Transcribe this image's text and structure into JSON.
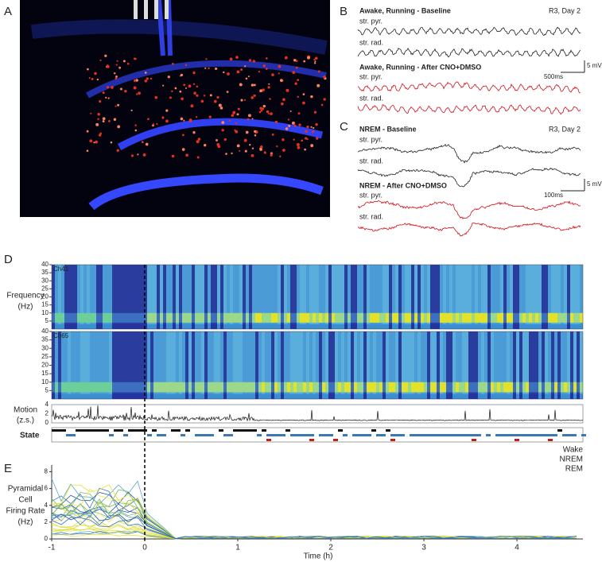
{
  "panel_labels": [
    "A",
    "B",
    "C",
    "D",
    "E"
  ],
  "panel_b": {
    "baseline": {
      "title": "Awake, Running - Baseline",
      "session": "R3, Day 2",
      "channels": [
        "str. pyr.",
        "str. rad."
      ]
    },
    "after": {
      "title": "Awake, Running - After CNO+DMSO",
      "channels": [
        "str. pyr.",
        "str. rad."
      ]
    },
    "scale": {
      "voltage": "5 mV",
      "time": "500ms"
    }
  },
  "panel_c": {
    "baseline": {
      "title": "NREM - Baseline",
      "session": "R3, Day 2",
      "channels": [
        "str. pyr.",
        "str. rad."
      ]
    },
    "after": {
      "title": "NREM - After CNO+DMSO",
      "channels": [
        "str. pyr.",
        "str. rad."
      ]
    },
    "scale": {
      "voltage": "5 mV",
      "time": "100ms"
    }
  },
  "panel_d": {
    "channels": [
      "Ch41",
      "Ch65"
    ],
    "frequency_label": [
      "Frequency",
      "(Hz)"
    ],
    "frequency_ticks": [
      5,
      10,
      15,
      20,
      25,
      30,
      35,
      40
    ],
    "motion_label": [
      "Motion",
      "(z.s.)"
    ],
    "motion_ticks": [
      0,
      2,
      4
    ],
    "state_label": "State",
    "states": [
      "Wake",
      "NREM",
      "REM"
    ]
  },
  "panel_e": {
    "y_label": [
      "Pyramidal",
      "Cell",
      "Firing Rate",
      "(Hz)"
    ],
    "yticks": [
      0,
      2,
      4,
      6,
      8
    ],
    "xticks": [
      -1,
      0,
      1,
      2,
      3,
      4
    ],
    "x_label": "Time (h)"
  }
}
